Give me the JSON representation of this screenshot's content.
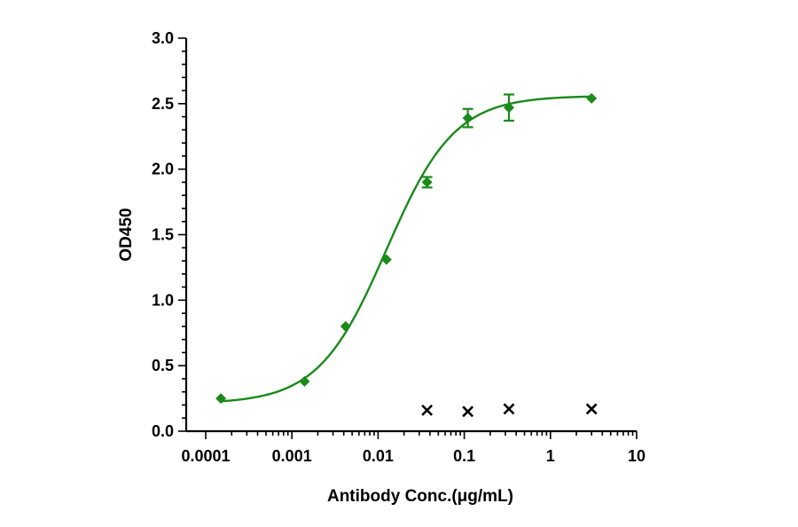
{
  "chart_data": {
    "type": "scatter",
    "xlabel": "Antibody Conc.(μg/mL)",
    "ylabel": "OD450",
    "xscale": "log",
    "xlim": [
      0.0001,
      10
    ],
    "ylim": [
      0,
      3.0
    ],
    "x_ticks": [
      "0.0001",
      "0.001",
      "0.01",
      "0.1",
      "1",
      "10"
    ],
    "y_ticks": [
      "0.0",
      "0.5",
      "1.0",
      "1.5",
      "2.0",
      "2.5",
      "3.0"
    ],
    "grid": false,
    "legend": "none",
    "series": [
      {
        "marker": "diamond",
        "color": "#1a8a1a",
        "fit": "four-parameter logistic",
        "points": [
          {
            "x": 0.00015,
            "y": 0.25,
            "err": 0
          },
          {
            "x": 0.0014,
            "y": 0.38,
            "err": 0
          },
          {
            "x": 0.0042,
            "y": 0.8,
            "err": 0
          },
          {
            "x": 0.0125,
            "y": 1.31,
            "err": 0
          },
          {
            "x": 0.037,
            "y": 1.9,
            "err": 0.04
          },
          {
            "x": 0.11,
            "y": 2.39,
            "err": 0.07
          },
          {
            "x": 0.33,
            "y": 2.47,
            "err": 0.1
          },
          {
            "x": 3.0,
            "y": 2.54,
            "err": 0
          }
        ],
        "fit_params": {
          "bottom": 0.21,
          "top": 2.56,
          "ec50": 0.0125,
          "hill": 1.1
        }
      },
      {
        "marker": "x-mark",
        "color": "#000000",
        "points": [
          {
            "x": 0.037,
            "y": 0.16
          },
          {
            "x": 0.11,
            "y": 0.15
          },
          {
            "x": 0.33,
            "y": 0.17
          },
          {
            "x": 3.0,
            "y": 0.17
          }
        ]
      }
    ]
  }
}
